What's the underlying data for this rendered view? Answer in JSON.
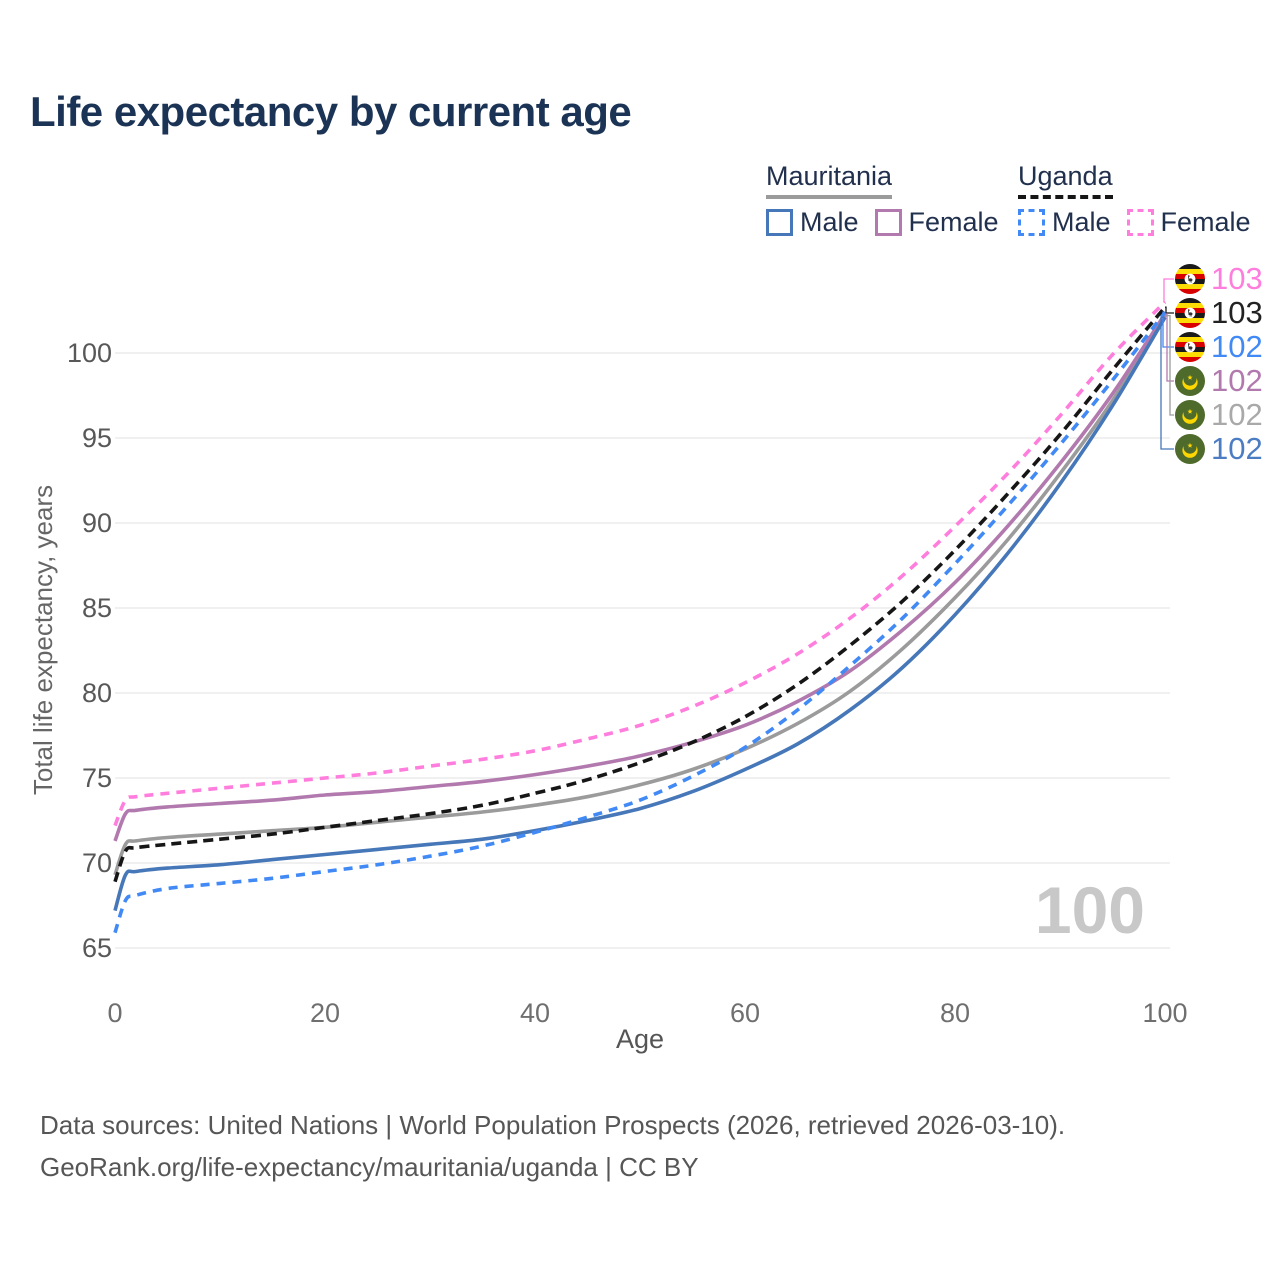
{
  "title": "Life expectancy by current age",
  "watermark": "100",
  "legend": {
    "mauritania": {
      "name": "Mauritania",
      "male_label": "Male",
      "female_label": "Female"
    },
    "uganda": {
      "name": "Uganda",
      "male_label": "Male",
      "female_label": "Female"
    }
  },
  "footer": {
    "line1": "Data sources: United Nations | World Population Prospects (2026, retrieved 2026-03-10).",
    "line2": "GeoRank.org/life-expectancy/mauritania/uganda | CC BY"
  },
  "colors": {
    "title_text": "#1b3355",
    "legend_text": "#21304d",
    "grid": "#ececec",
    "y_tick_text": "#585858",
    "x_tick_text": "#6f6f6f",
    "watermark_gray": "#c8c8c8"
  },
  "chart_data": {
    "type": "line",
    "title": "Life expectancy by current age",
    "xlabel": "Age",
    "ylabel": "Total life expectancy, years",
    "x_ticks": [
      0,
      20,
      40,
      60,
      80,
      100
    ],
    "y_ticks": [
      65,
      70,
      75,
      80,
      85,
      90,
      95,
      100
    ],
    "xlim": [
      0,
      100
    ],
    "ylim": [
      65,
      103.5
    ],
    "grid": "horizontal",
    "legend_position": "top-right",
    "x": [
      0,
      1,
      2,
      5,
      10,
      15,
      20,
      25,
      30,
      35,
      40,
      45,
      50,
      55,
      60,
      65,
      70,
      75,
      80,
      85,
      90,
      95,
      100
    ],
    "series": [
      {
        "id": "uga-female",
        "name": "Uganda Female",
        "country": "Uganda",
        "sex": "Female",
        "color": "#ff7ddc",
        "label_color": "#ff7ddc",
        "dash": "9 7",
        "z": 6,
        "flag": "uganda",
        "end_label": "103",
        "values": [
          72.2,
          73.7,
          73.9,
          74.1,
          74.4,
          74.7,
          75.0,
          75.3,
          75.7,
          76.1,
          76.6,
          77.3,
          78.1,
          79.2,
          80.6,
          82.3,
          84.4,
          86.9,
          89.8,
          92.9,
          96.3,
          99.9,
          103.0
        ]
      },
      {
        "id": "uga-both",
        "name": "Uganda Both sexes",
        "country": "Uganda",
        "sex": "Both",
        "color": "#161616",
        "label_color": "#222222",
        "dash": "10 6",
        "z": 5,
        "flag": "uganda",
        "end_label": "103",
        "values": [
          68.9,
          70.7,
          70.9,
          71.1,
          71.4,
          71.7,
          72.1,
          72.5,
          72.9,
          73.4,
          74.1,
          74.9,
          75.9,
          77.1,
          78.6,
          80.5,
          82.8,
          85.4,
          88.4,
          91.7,
          95.2,
          99.0,
          102.7
        ]
      },
      {
        "id": "uga-male",
        "name": "Uganda Male",
        "country": "Uganda",
        "sex": "Male",
        "color": "#4189f4",
        "label_color": "#4189f4",
        "dash": "9 7",
        "z": 4,
        "flag": "uganda",
        "end_label": "102",
        "values": [
          65.9,
          67.8,
          68.1,
          68.5,
          68.8,
          69.1,
          69.5,
          69.9,
          70.4,
          71.0,
          71.8,
          72.7,
          73.7,
          75.1,
          76.8,
          79.0,
          81.6,
          84.4,
          87.6,
          91.0,
          94.6,
          98.4,
          102.4
        ]
      },
      {
        "id": "mau-female",
        "name": "Mauritania Female",
        "country": "Mauritania",
        "sex": "Female",
        "color": "#b279ae",
        "label_color": "#b279ae",
        "dash": null,
        "z": 2,
        "flag": "mauritania",
        "end_label": "102",
        "values": [
          71.3,
          72.9,
          73.1,
          73.3,
          73.5,
          73.7,
          74.0,
          74.2,
          74.5,
          74.8,
          75.2,
          75.7,
          76.3,
          77.1,
          78.1,
          79.5,
          81.3,
          83.7,
          86.5,
          89.8,
          93.5,
          97.6,
          102.3
        ]
      },
      {
        "id": "mau-both",
        "name": "Mauritania Both sexes",
        "country": "Mauritania",
        "sex": "Both",
        "color": "#9b9b9b",
        "label_color": "#a9a9a9",
        "dash": null,
        "z": 1,
        "flag": "mauritania",
        "end_label": "102",
        "values": [
          69.3,
          71.1,
          71.3,
          71.5,
          71.7,
          71.9,
          72.1,
          72.4,
          72.7,
          73.0,
          73.4,
          73.9,
          74.6,
          75.5,
          76.7,
          78.2,
          80.1,
          82.6,
          85.6,
          89.0,
          92.9,
          97.2,
          102.2
        ]
      },
      {
        "id": "mau-male",
        "name": "Mauritania Male",
        "country": "Mauritania",
        "sex": "Male",
        "color": "#4677b8",
        "label_color": "#4c7cc2",
        "dash": null,
        "z": 3,
        "flag": "mauritania",
        "end_label": "102",
        "values": [
          67.2,
          69.3,
          69.5,
          69.7,
          69.9,
          70.2,
          70.5,
          70.8,
          71.1,
          71.4,
          71.9,
          72.5,
          73.2,
          74.2,
          75.5,
          77.0,
          79.0,
          81.5,
          84.6,
          88.2,
          92.3,
          96.9,
          102.1
        ]
      }
    ]
  }
}
